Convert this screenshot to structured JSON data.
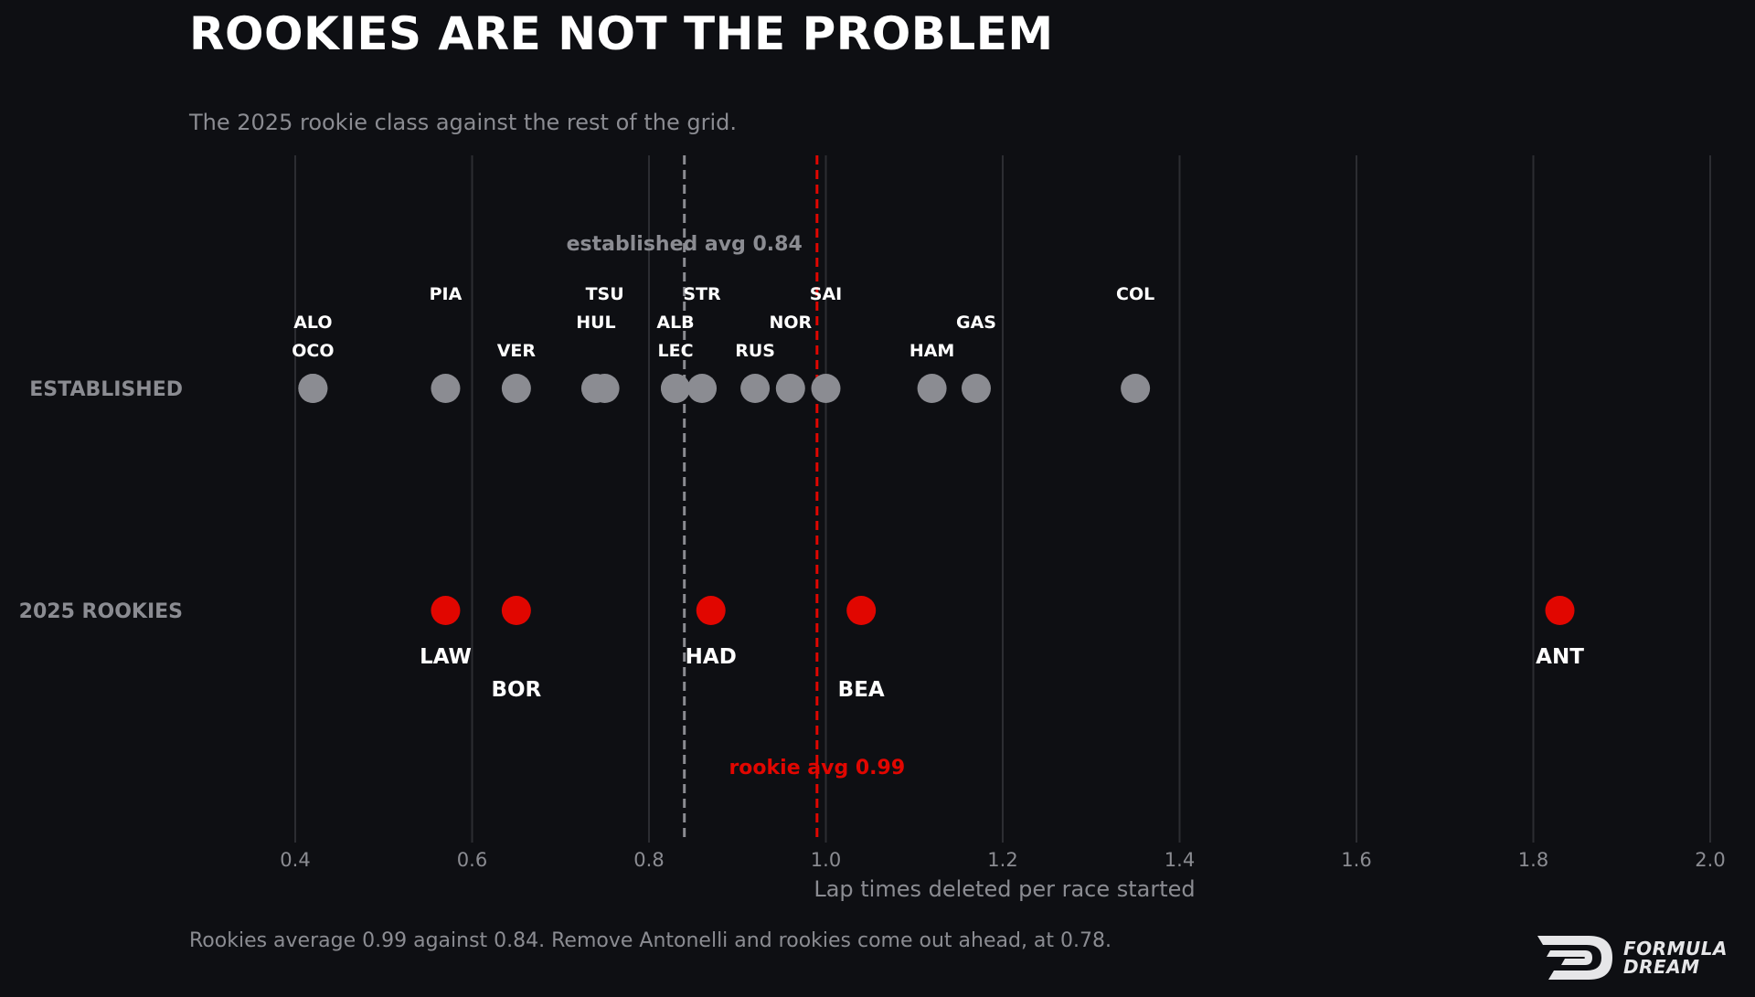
{
  "header": {
    "title": "ROOKIES ARE NOT THE PROBLEM",
    "subtitle": "The 2025 rookie class against the rest of the grid."
  },
  "footer": {
    "note": "Rookies average 0.99 against 0.84. Remove Antonelli and rookies come out ahead, at 0.78.",
    "logo_line1": "FORMULA",
    "logo_line2": "DREAM"
  },
  "colors": {
    "background": "#0e0f13",
    "established": "#8b8c92",
    "rookie": "#e10600",
    "grid": "#2c2d32",
    "label": "#ffffff",
    "muted": "#8b8c92"
  },
  "chart_data": {
    "type": "scatter",
    "title": "ROOKIES ARE NOT THE PROBLEM",
    "subtitle": "The 2025 rookie class against the rest of the grid.",
    "xlabel": "Lap times deleted per race started",
    "ylabel": "",
    "xlim": [
      0.4,
      2.0
    ],
    "xticks": [
      "0.4",
      "0.6",
      "0.8",
      "1.0",
      "1.2",
      "1.4",
      "1.6",
      "1.8",
      "2.0"
    ],
    "categories": [
      "ESTABLISHED",
      "2025 ROOKIES"
    ],
    "grid": "vertical",
    "series": [
      {
        "name": "ESTABLISHED",
        "color": "#8b8c92",
        "points": [
          {
            "label": "OCO",
            "x": 0.42
          },
          {
            "label": "ALO",
            "x": 0.42
          },
          {
            "label": "PIA",
            "x": 0.57
          },
          {
            "label": "VER",
            "x": 0.65
          },
          {
            "label": "HUL",
            "x": 0.74
          },
          {
            "label": "TSU",
            "x": 0.75
          },
          {
            "label": "LEC",
            "x": 0.83
          },
          {
            "label": "ALB",
            "x": 0.83
          },
          {
            "label": "STR",
            "x": 0.86
          },
          {
            "label": "RUS",
            "x": 0.92
          },
          {
            "label": "NOR",
            "x": 0.96
          },
          {
            "label": "SAI",
            "x": 1.0
          },
          {
            "label": "HAM",
            "x": 1.12
          },
          {
            "label": "GAS",
            "x": 1.17
          },
          {
            "label": "COL",
            "x": 1.35
          }
        ]
      },
      {
        "name": "2025 ROOKIES",
        "color": "#e10600",
        "points": [
          {
            "label": "LAW",
            "x": 0.57
          },
          {
            "label": "BOR",
            "x": 0.65
          },
          {
            "label": "HAD",
            "x": 0.87
          },
          {
            "label": "BEA",
            "x": 1.04
          },
          {
            "label": "ANT",
            "x": 1.83
          }
        ]
      }
    ],
    "reference_lines": [
      {
        "label": "established avg 0.84",
        "x": 0.84,
        "color": "#8b8c92"
      },
      {
        "label": "rookie avg 0.99",
        "x": 0.99,
        "color": "#e10600"
      }
    ]
  }
}
